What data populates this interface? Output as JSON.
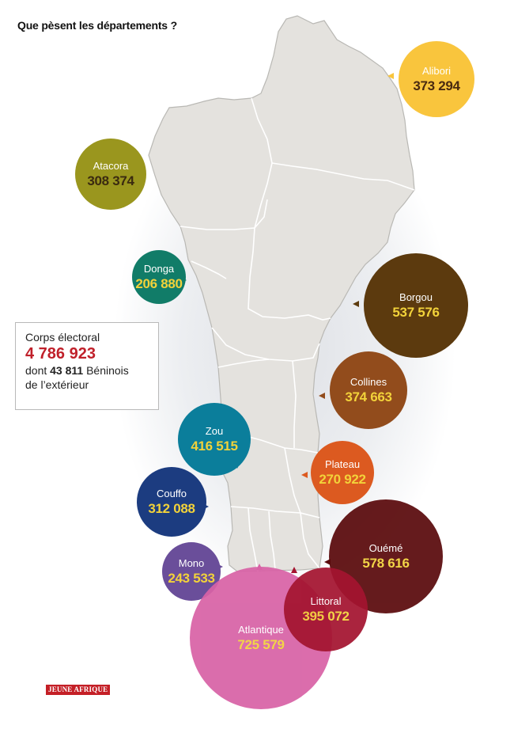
{
  "title": "Que pèsent les départements ?",
  "summary": {
    "label": "Corps électoral",
    "total": "4 786 923",
    "abroad_prefix": "dont",
    "abroad_count": "43 811",
    "abroad_suffix": "Béninois",
    "abroad_line2": "de l’extérieur"
  },
  "logo_text": "JEUNE AFRIQUE",
  "colors": {
    "map_fill": "#e4e2de",
    "map_border": "#ffffff",
    "value_light": "#f2d23a"
  },
  "departments": [
    {
      "key": "alibori",
      "name": "Alibori",
      "value": "373 294",
      "color": "#f9c53d",
      "name_color": "#ffffff",
      "value_color": "#4a2a10"
    },
    {
      "key": "atacora",
      "name": "Atacora",
      "value": "308 374",
      "color": "#9a961e",
      "name_color": "#ffffff",
      "value_color": "#3a2a10"
    },
    {
      "key": "donga",
      "name": "Donga",
      "value": "206 880",
      "color": "#117c68",
      "name_color": "#ffffff",
      "value_color": "#f2d23a"
    },
    {
      "key": "borgou",
      "name": "Borgou",
      "value": "537 576",
      "color": "#5c3a0e",
      "name_color": "#ffffff",
      "value_color": "#f2d23a"
    },
    {
      "key": "collines",
      "name": "Collines",
      "value": "374 663",
      "color": "#924c1c",
      "name_color": "#ffffff",
      "value_color": "#f2d23a"
    },
    {
      "key": "zou",
      "name": "Zou",
      "value": "416 515",
      "color": "#0b7e9b",
      "name_color": "#ffffff",
      "value_color": "#f2d23a"
    },
    {
      "key": "plateau",
      "name": "Plateau",
      "value": "270 922",
      "color": "#dc5a20",
      "name_color": "#ffffff",
      "value_color": "#f2d23a"
    },
    {
      "key": "couffo",
      "name": "Couffo",
      "value": "312 088",
      "color": "#1c3c80",
      "name_color": "#ffffff",
      "value_color": "#f2d23a"
    },
    {
      "key": "oueme",
      "name": "Ouémé",
      "value": "578 616",
      "color": "#5a0a0c",
      "name_color": "#ffffff",
      "value_color": "#f2d23a"
    },
    {
      "key": "mono",
      "name": "Mono",
      "value": "243 533",
      "color": "#6a4e9a",
      "name_color": "#ffffff",
      "value_color": "#f2d23a"
    },
    {
      "key": "littoral",
      "name": "Littoral",
      "value": "395 072",
      "color": "#a41430",
      "name_color": "#ffffff",
      "value_color": "#f2d23a"
    },
    {
      "key": "atlantique",
      "name": "Atlantique",
      "value": "725 579",
      "color": "#d862a6",
      "name_color": "#ffffff",
      "value_color": "#f2d23a"
    }
  ]
}
